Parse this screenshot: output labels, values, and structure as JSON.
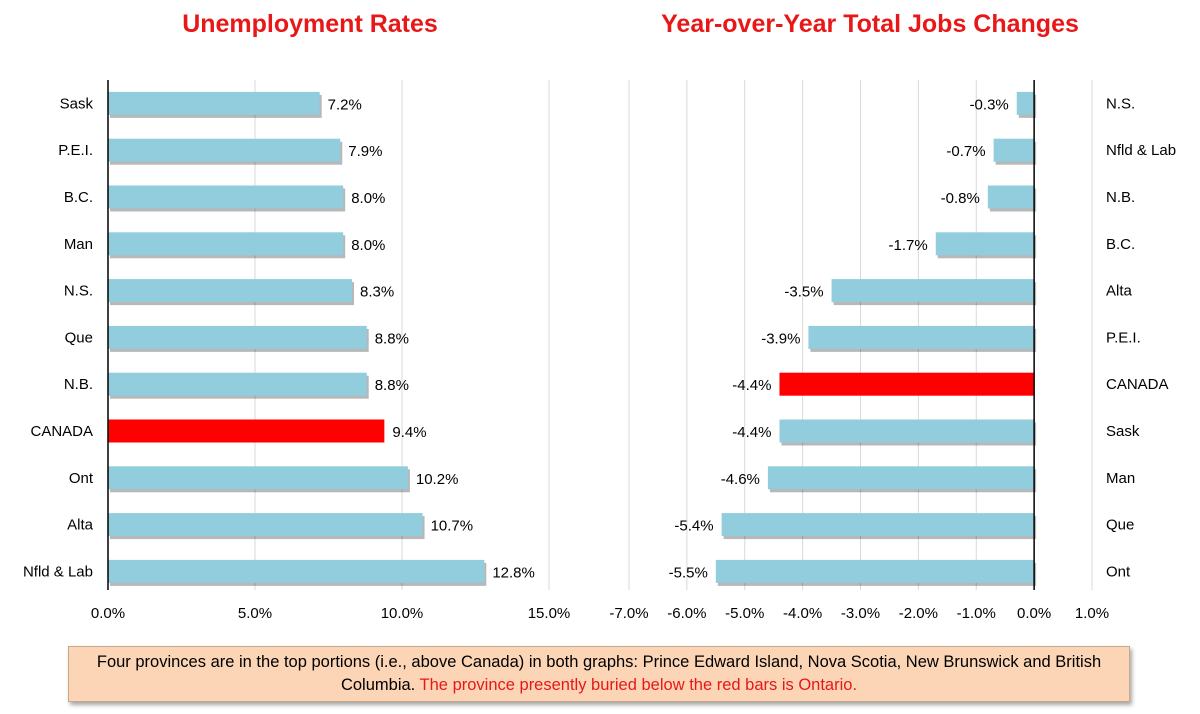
{
  "colors": {
    "bar": "#92cddd",
    "highlight": "#ff0000",
    "title": "#e81818",
    "grid": "#d9d9d9",
    "note_bg": "#fbd5b5"
  },
  "chart_data": [
    {
      "type": "bar",
      "orientation": "horizontal",
      "title": "Unemployment Rates",
      "categories": [
        "Sask",
        "P.E.I.",
        "B.C.",
        "Man",
        "N.S.",
        "Que",
        "N.B.",
        "CANADA",
        "Ont",
        "Alta",
        "Nfld & Lab"
      ],
      "values": [
        7.2,
        7.9,
        8.0,
        8.0,
        8.3,
        8.8,
        8.8,
        9.4,
        10.2,
        10.7,
        12.8
      ],
      "value_labels": [
        "7.2%",
        "7.9%",
        "8.0%",
        "8.0%",
        "8.3%",
        "8.8%",
        "8.8%",
        "9.4%",
        "10.2%",
        "10.7%",
        "12.8%"
      ],
      "highlight": "CANADA",
      "xlim": [
        0,
        15
      ],
      "ticks": [
        0,
        5,
        10,
        15
      ],
      "tick_labels": [
        "0.0%",
        "5.0%",
        "10.0%",
        "15.0%"
      ],
      "grid": true
    },
    {
      "type": "bar",
      "orientation": "horizontal",
      "title": "Year-over-Year Total Jobs Changes",
      "categories": [
        "N.S.",
        "Nfld & Lab",
        "N.B.",
        "B.C.",
        "Alta",
        "P.E.I.",
        "CANADA",
        "Sask",
        "Man",
        "Que",
        "Ont"
      ],
      "values": [
        -0.3,
        -0.7,
        -0.8,
        -1.7,
        -3.5,
        -3.9,
        -4.4,
        -4.4,
        -4.6,
        -5.4,
        -5.5
      ],
      "value_labels": [
        "-0.3%",
        "-0.7%",
        "-0.8%",
        "-1.7%",
        "-3.5%",
        "-3.9%",
        "-4.4%",
        "-4.4%",
        "-4.6%",
        "-5.4%",
        "-5.5%"
      ],
      "highlight": "CANADA",
      "xlim": [
        -7,
        1
      ],
      "ticks": [
        -7,
        -6,
        -5,
        -4,
        -3,
        -2,
        -1,
        0,
        1
      ],
      "tick_labels": [
        "-7.0%",
        "-6.0%",
        "-5.0%",
        "-4.0%",
        "-3.0%",
        "-2.0%",
        "-1.0%",
        "0.0%",
        "1.0%"
      ],
      "grid": true
    }
  ],
  "note": {
    "text_black": "Four provinces are in the top portions (i.e., above Canada) in both graphs: Prince Edward Island, Nova Scotia, New Brunswick and British Columbia. ",
    "text_red": "The province presently buried below the red bars is  Ontario."
  }
}
